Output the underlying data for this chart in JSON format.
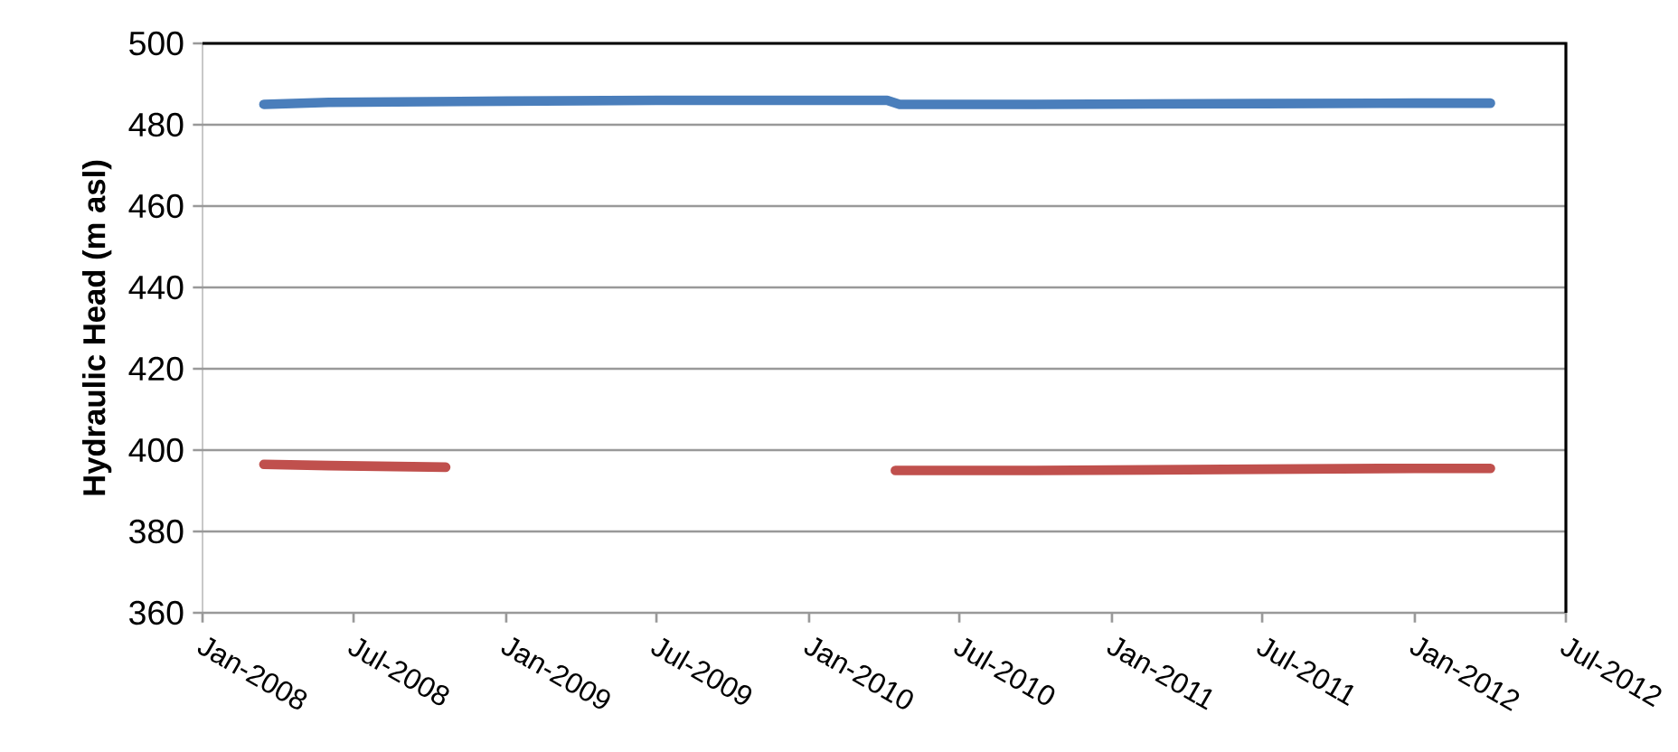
{
  "chart_data": {
    "type": "line",
    "ylabel": "Hydraulic Head (m asl)",
    "xlim": [
      "2008-01",
      "2012-07"
    ],
    "ylim": [
      360,
      500
    ],
    "yticks": [
      360,
      380,
      400,
      420,
      440,
      460,
      480,
      500
    ],
    "xticks": [
      {
        "value": "2008-01",
        "label": "Jan-2008"
      },
      {
        "value": "2008-07",
        "label": "Jul-2008"
      },
      {
        "value": "2009-01",
        "label": "Jan-2009"
      },
      {
        "value": "2009-07",
        "label": "Jul-2009"
      },
      {
        "value": "2010-01",
        "label": "Jan-2010"
      },
      {
        "value": "2010-07",
        "label": "Jul-2010"
      },
      {
        "value": "2011-01",
        "label": "Jan-2011"
      },
      {
        "value": "2011-07",
        "label": "Jul-2011"
      },
      {
        "value": "2012-01",
        "label": "Jan-2012"
      },
      {
        "value": "2012-07",
        "label": "Jul-2012"
      }
    ],
    "grid": "y",
    "series": [
      {
        "color": "#4a7ebb",
        "x": [
          "2008-03-15",
          "2008-06-01",
          "2009-01-01",
          "2009-07-01",
          "2010-01-01",
          "2010-04-05",
          "2010-04-20",
          "2010-10-01",
          "2011-07-01",
          "2012-01-01",
          "2012-04-01"
        ],
        "values": [
          485,
          485.5,
          485.8,
          486,
          486,
          486,
          485,
          485,
          485.2,
          485.3,
          485.3
        ]
      },
      {
        "color": "#c0504d",
        "x": [
          "2008-03-15",
          "2008-06-01",
          "2008-10-20",
          "2009-06-01",
          "2010-04-15",
          "2010-10-01",
          "2011-07-01",
          "2012-01-01",
          "2012-04-01"
        ],
        "values": [
          396.5,
          396.2,
          395.8,
          null,
          395,
          395,
          395.3,
          395.5,
          395.5
        ]
      }
    ]
  }
}
